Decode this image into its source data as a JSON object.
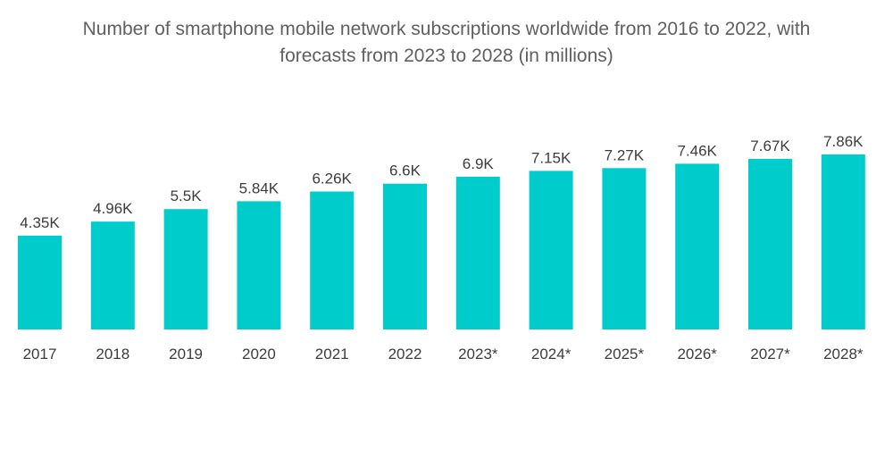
{
  "chart_data": {
    "type": "bar",
    "title_line1": "Number of smartphone mobile network subscriptions worldwide from 2016 to 2022, with",
    "title_line2": "forecasts from 2023 to 2028 (in millions)",
    "xlabel": "",
    "ylabel": "",
    "ylim": [
      0,
      7.86
    ],
    "grid": false,
    "legend": "none",
    "color": "#00cccc",
    "categories": [
      "2017",
      "2018",
      "2019",
      "2020",
      "2021",
      "2022",
      "2023*",
      "2024*",
      "2025*",
      "2026*",
      "2027*",
      "2028*"
    ],
    "values": [
      4.35,
      4.96,
      5.5,
      5.84,
      6.26,
      6.6,
      6.9,
      7.15,
      7.27,
      7.46,
      7.67,
      7.86
    ],
    "data_labels": [
      "4.35K",
      "4.96K",
      "5.5K",
      "5.84K",
      "6.26K",
      "6.6K",
      "6.9K",
      "7.15K",
      "7.27K",
      "7.46K",
      "7.67K",
      "7.86K"
    ]
  }
}
